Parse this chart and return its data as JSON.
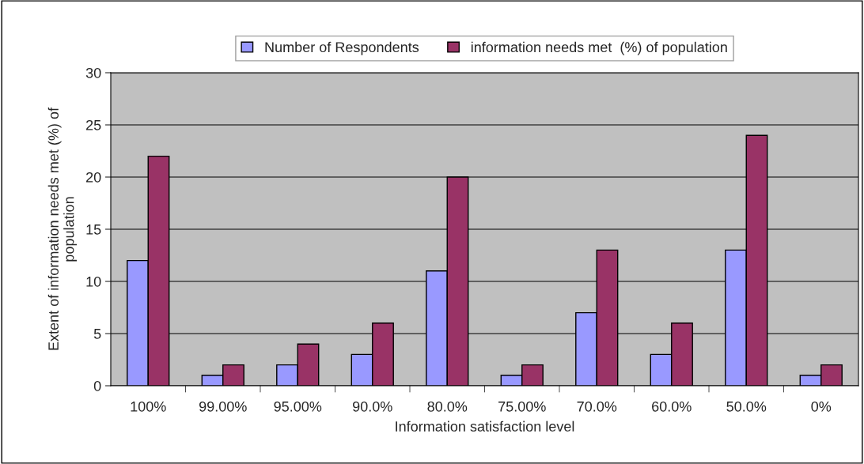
{
  "chart_data": {
    "type": "bar",
    "xlabel": "Information satisfaction level",
    "ylabel": "Extent of information needs met (%) of\npopulation",
    "categories": [
      "100%",
      "99.00%",
      "95.00%",
      "90.0%",
      "80.0%",
      "75.00%",
      "70.0%",
      "60.0%",
      "50.0%",
      "0%"
    ],
    "series": [
      {
        "name": "Number of Respondents",
        "color": "#9999ff",
        "values": [
          12,
          1,
          2,
          3,
          11,
          1,
          7,
          3,
          13,
          1
        ]
      },
      {
        "name": "information needs met  (%) of population",
        "color": "#993366",
        "values": [
          22,
          2,
          4,
          6,
          20,
          2,
          13,
          6,
          24,
          2
        ]
      }
    ],
    "ylim": [
      0,
      30
    ],
    "yticks": [
      0,
      5,
      10,
      15,
      20,
      25,
      30
    ],
    "grid": "y",
    "legend": "top"
  }
}
